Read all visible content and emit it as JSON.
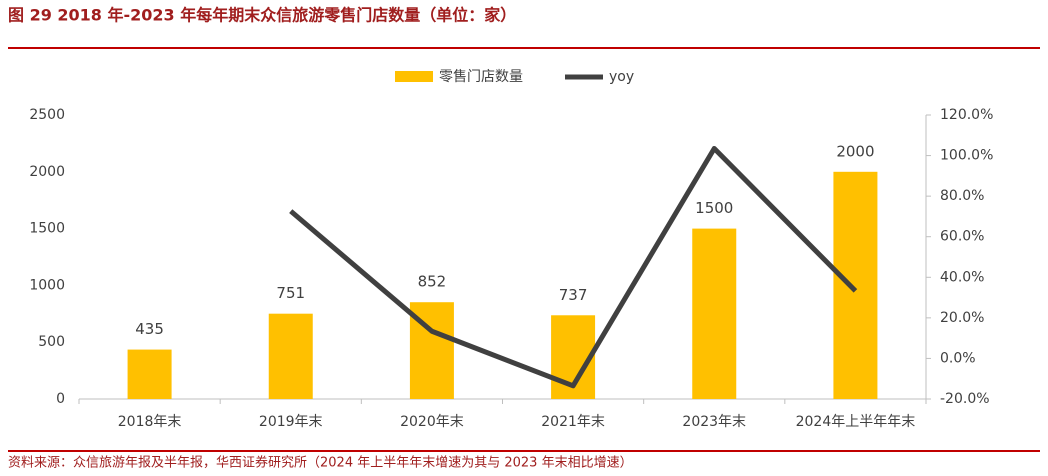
{
  "chart_data": {
    "type": "bar-line",
    "title": "图 29  2018 年-2023 年每年期末众信旅游零售门店数量（单位：家）",
    "source": "资料来源：众信旅游年报及半年报，华西证券研究所（2024 年上半年年末增速为其与 2023 年末相比增速）",
    "categories": [
      "2018年末",
      "2019年末",
      "2020年末",
      "2021年末",
      "2023年末",
      "2024年上半年年末"
    ],
    "series": [
      {
        "name": "零售门店数量",
        "color": "#ffc000",
        "type": "bar",
        "values": [
          435,
          751,
          852,
          737,
          1500,
          2000
        ]
      },
      {
        "name": "yoy",
        "color": "#404040",
        "type": "line",
        "axis": "y2",
        "values": [
          null,
          72.6,
          13.4,
          -13.5,
          103.5,
          33.3
        ]
      }
    ],
    "ylim": [
      0,
      2500
    ],
    "yticks": [
      0,
      500,
      1000,
      1500,
      2000,
      2500
    ],
    "y2lim": [
      -20,
      120
    ],
    "y2ticks": [
      {
        "value": -20,
        "label": "-20.0%"
      },
      {
        "value": 0,
        "label": "0.0%"
      },
      {
        "value": 20,
        "label": "20.0%"
      },
      {
        "value": 40,
        "label": "40.0%"
      },
      {
        "value": 60,
        "label": "60.0%"
      },
      {
        "value": 80,
        "label": "80.0%"
      },
      {
        "value": 100,
        "label": "100.0%"
      },
      {
        "value": 120,
        "label": "120.0%"
      }
    ],
    "legend": "top"
  }
}
